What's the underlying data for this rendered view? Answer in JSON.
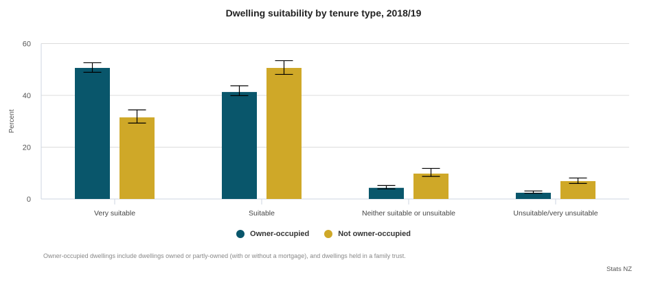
{
  "chart_data": {
    "type": "bar",
    "title": "Dwelling suitability by tenure type, 2018/19",
    "xlabel": "",
    "ylabel": "Percent",
    "ylim": [
      0,
      60
    ],
    "yticks": [
      0,
      20,
      40,
      60
    ],
    "grid": true,
    "legend_position": "bottom-center",
    "categories": [
      "Very suitable",
      "Suitable",
      "Neither suitable or unsuitable",
      "Unsuitable/very unsuitable"
    ],
    "series": [
      {
        "name": "Owner-occupied",
        "color": "#09566b",
        "values": [
          50.6,
          41.3,
          4.3,
          2.4
        ],
        "error_low": [
          48.9,
          39.9,
          3.9,
          2.2
        ],
        "error_high": [
          52.6,
          43.7,
          5.2,
          3.1
        ]
      },
      {
        "name": "Not owner-occupied",
        "color": "#cfa828",
        "values": [
          31.5,
          50.6,
          9.8,
          6.9
        ],
        "error_low": [
          29.3,
          48.1,
          8.7,
          6.0
        ],
        "error_high": [
          34.4,
          53.4,
          11.8,
          8.1
        ]
      }
    ]
  },
  "footnote": "Owner-occupied dwellings include dwellings owned or partly-owned (with or without a mortgage), and dwellings held in a family trust.",
  "source": "Stats NZ"
}
